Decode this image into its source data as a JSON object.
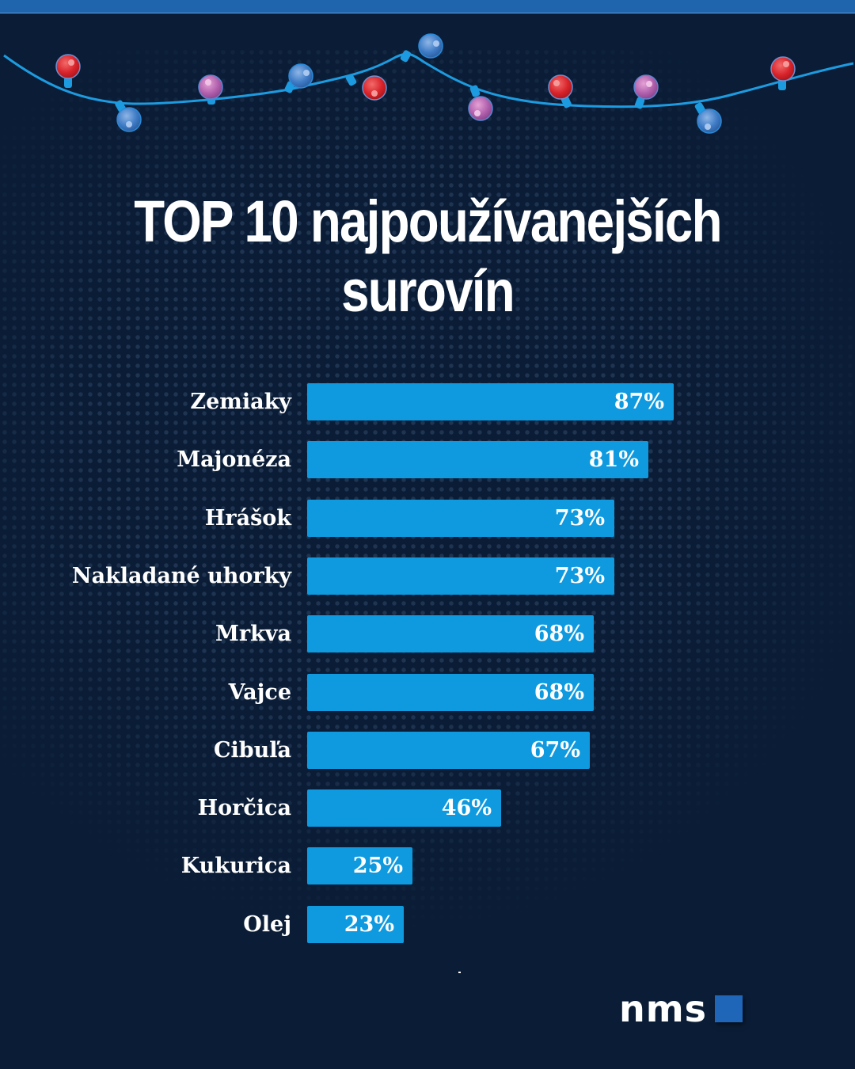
{
  "header": {
    "title_line1": "TOP 10 najpoužívanejších",
    "title_line2": "surovín"
  },
  "colors": {
    "background": "#0b1d36",
    "bar": "#0f9ae0",
    "top_band": "#1f65ad",
    "text": "#ffffff",
    "logo_square": "#1f65b8"
  },
  "decoration": {
    "string_lights": [
      "red",
      "blue",
      "purple",
      "blue",
      "red",
      "blue",
      "purple",
      "red",
      "purple",
      "blue",
      "red"
    ]
  },
  "chart_data": {
    "type": "bar",
    "orientation": "horizontal",
    "title": "TOP 10 najpoužívanejších surovín",
    "xlabel": "",
    "ylabel": "",
    "categories": [
      "Zemiaky",
      "Majonéza",
      "Hrášok",
      "Nakladané uhorky",
      "Mrkva",
      "Vajce",
      "Cibuľa",
      "Horčica",
      "Kukurica",
      "Olej"
    ],
    "values": [
      87,
      81,
      73,
      73,
      68,
      68,
      67,
      46,
      25,
      23
    ],
    "value_labels": [
      "87%",
      "81%",
      "73%",
      "73%",
      "68%",
      "68%",
      "67%",
      "46%",
      "25%",
      "23%"
    ],
    "unit": "%",
    "xlim": [
      0,
      100
    ],
    "grid": false,
    "legend": null
  },
  "footer": {
    "logo_text": "nms"
  }
}
